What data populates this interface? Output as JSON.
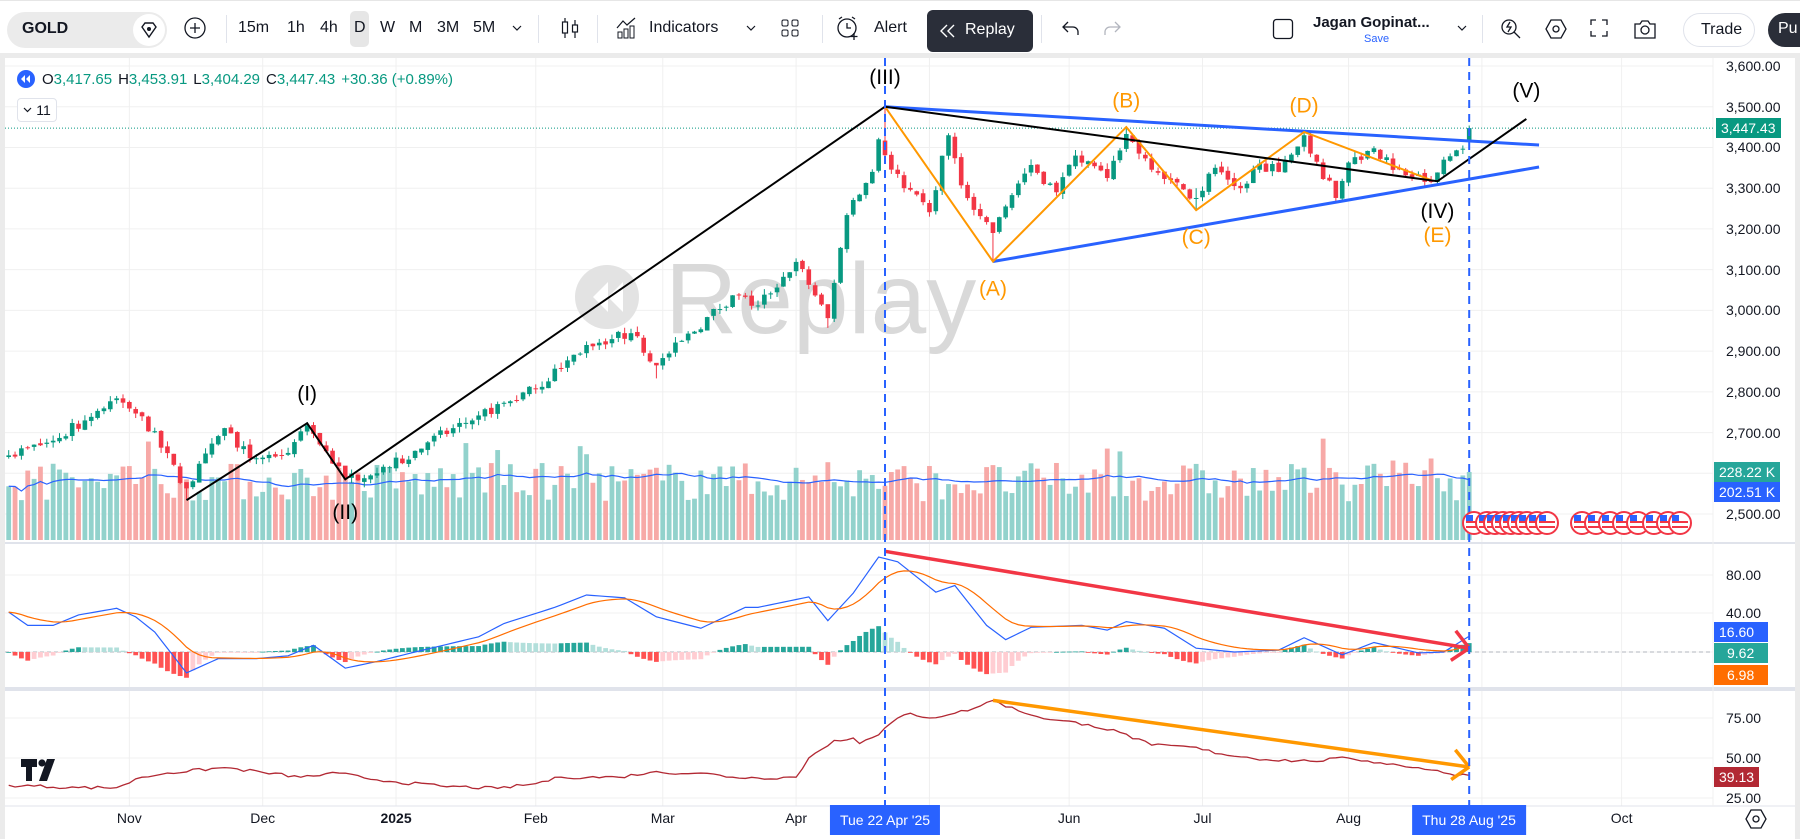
{
  "toolbar": {
    "symbol": "GOLD",
    "intervals": [
      "15m",
      "1h",
      "4h",
      "D",
      "W",
      "M",
      "3M",
      "5M"
    ],
    "selected_interval": "D",
    "indicators_label": "Indicators",
    "alert_label": "Alert",
    "replay_label": "Replay",
    "layout_name": "Jagan Gopinat...",
    "save_label": "Save",
    "trade_label": "Trade",
    "publish_label": "Pu"
  },
  "legend": {
    "o_label": "O",
    "open": "3,417.65",
    "h_label": "H",
    "high": "3,453.91",
    "l_label": "L",
    "low": "3,404.29",
    "c_label": "C",
    "close": "3,447.43",
    "change": "+30.36 (+0.89%)",
    "indicators_count": "11"
  },
  "watermark": "Replay",
  "price_axis": [
    "3,600.00",
    "3,500.00",
    "3,400.00",
    "3,300.00",
    "3,200.00",
    "3,100.00",
    "3,000.00",
    "2,900.00",
    "2,800.00",
    "2,700.00",
    "2,500.00"
  ],
  "macd_axis": [
    "80.00",
    "40.00"
  ],
  "osc_axis": [
    "75.00",
    "50.00",
    "25.00"
  ],
  "tags": {
    "last_price": "3,447.43",
    "volume": "228.22 K",
    "volume_ma": "202.51 K",
    "macd": "16.60",
    "histogram": "9.62",
    "signal": "6.98",
    "oscillator": "39.13"
  },
  "time_axis": [
    {
      "label": "Nov",
      "date": "2024-11-01",
      "bold": false
    },
    {
      "label": "Dec",
      "date": "2024-12-02",
      "bold": false
    },
    {
      "label": "2025",
      "date": "2025-01-02",
      "bold": true
    },
    {
      "label": "Feb",
      "date": "2025-02-03",
      "bold": false
    },
    {
      "label": "Mar",
      "date": "2025-03-03",
      "bold": false
    },
    {
      "label": "Apr",
      "date": "2025-04-01",
      "bold": false
    },
    {
      "label": "Jun",
      "date": "2025-06-02",
      "bold": false
    },
    {
      "label": "Jul",
      "date": "2025-07-01",
      "bold": false
    },
    {
      "label": "Aug",
      "date": "2025-08-01",
      "bold": false
    },
    {
      "label": "Oct",
      "date": "2025-10-01",
      "bold": false
    }
  ],
  "cursor_labels": {
    "start": "Tue 22 Apr '25",
    "end": "Thu 28 Aug '25"
  },
  "wave_labels": {
    "I": "(I)",
    "II": "(II)",
    "III": "(III)",
    "IV": "(IV)",
    "V": "(V)",
    "A": "(A)",
    "B": "(B)",
    "C": "(C)",
    "D": "(D)",
    "E": "(E)"
  },
  "colors": {
    "up": "#089981",
    "down": "#f23645",
    "vol_up": "#92d2cc",
    "vol_down": "#f7a9a7",
    "macd": "#2962ff",
    "signal": "#ff6d00",
    "osc": "#b22833",
    "wave": "#000000",
    "abc": "#ff9800",
    "channel": "#2962ff",
    "divergence_macd": "#f23645",
    "divergence_osc": "#ff9800",
    "accent": "#2962ff"
  },
  "chart_data": {
    "type": "candlestick",
    "symbol": "GOLD",
    "interval": "D",
    "last_bar_date": "2025-08-28",
    "last_bar": {
      "open": 3417.65,
      "high": 3453.91,
      "low": 3404.29,
      "close": 3447.43
    },
    "price_range": [
      2500,
      3600
    ],
    "close_anchors": [
      [
        "2024-10-07",
        2644
      ],
      [
        "2024-10-16",
        2680
      ],
      [
        "2024-10-30",
        2784,
        2790
      ],
      [
        "2024-11-05",
        2740
      ],
      [
        "2024-11-14",
        2563,
        2570,
        2536
      ],
      [
        "2024-11-22",
        2711
      ],
      [
        "2024-11-28",
        2637
      ],
      [
        "2024-12-06",
        2650
      ],
      [
        "2024-12-11",
        2718,
        2726
      ],
      [
        "2024-12-19",
        2588,
        2600,
        2584
      ],
      [
        "2024-12-31",
        2615
      ],
      [
        "2025-01-09",
        2676
      ],
      [
        "2025-01-21",
        2742
      ],
      [
        "2025-02-03",
        2808
      ],
      [
        "2025-02-13",
        2915
      ],
      [
        "2025-02-24",
        2944,
        2955
      ],
      [
        "2025-02-28",
        2865,
        2870,
        2833
      ],
      [
        "2025-03-18",
        3037
      ],
      [
        "2025-03-24",
        3012
      ],
      [
        "2025-04-01",
        3119
      ],
      [
        "2025-04-08",
        2981,
        3010,
        2957
      ],
      [
        "2025-04-11",
        3234
      ],
      [
        "2025-04-17",
        3340
      ],
      [
        "2025-04-21",
        3420
      ],
      [
        "2025-04-22",
        3381,
        3500
      ],
      [
        "2025-04-25",
        3300
      ],
      [
        "2025-05-01",
        3241
      ],
      [
        "2025-05-06",
        3430,
        3435
      ],
      [
        "2025-05-08",
        3307
      ],
      [
        "2025-05-15",
        3190,
        3210,
        3120
      ],
      [
        "2025-05-20",
        3283
      ],
      [
        "2025-05-23",
        3357
      ],
      [
        "2025-05-29",
        3290
      ],
      [
        "2025-06-03",
        3380
      ],
      [
        "2025-06-10",
        3325
      ],
      [
        "2025-06-13",
        3433,
        3452
      ],
      [
        "2025-06-17",
        3385
      ],
      [
        "2025-06-24",
        3320
      ],
      [
        "2025-06-30",
        3276,
        3300,
        3246
      ],
      [
        "2025-07-03",
        3350
      ],
      [
        "2025-07-09",
        3300
      ],
      [
        "2025-07-14",
        3360
      ],
      [
        "2025-07-17",
        3340
      ],
      [
        "2025-07-23",
        3430,
        3438
      ],
      [
        "2025-07-25",
        3365
      ],
      [
        "2025-07-30",
        3276,
        3300,
        3268
      ],
      [
        "2025-08-01",
        3363
      ],
      [
        "2025-08-07",
        3398
      ],
      [
        "2025-08-12",
        3345
      ],
      [
        "2025-08-20",
        3315,
        3330,
        3312
      ],
      [
        "2025-08-22",
        3370
      ],
      [
        "2025-08-26",
        3393
      ],
      [
        "2025-08-27",
        3397
      ]
    ],
    "volume_unit": "K",
    "last_volume": 228.22,
    "last_volume_ma": 202.51,
    "macd_anchors": [
      [
        "2024-10-07",
        42
      ],
      [
        "2024-10-10",
        28
      ],
      [
        "2024-10-16",
        28
      ],
      [
        "2024-10-22",
        39
      ],
      [
        "2024-10-30",
        46
      ],
      [
        "2024-11-04",
        37
      ],
      [
        "2024-11-07",
        21
      ],
      [
        "2024-11-14",
        -22
      ],
      [
        "2024-11-21",
        -7
      ],
      [
        "2024-11-29",
        -7
      ],
      [
        "2024-12-06",
        -4
      ],
      [
        "2024-12-12",
        7
      ],
      [
        "2024-12-19",
        -17
      ],
      [
        "2024-12-27",
        -10
      ],
      [
        "2025-01-07",
        0
      ],
      [
        "2025-01-21",
        16
      ],
      [
        "2025-01-27",
        30
      ],
      [
        "2025-02-06",
        47
      ],
      [
        "2025-02-13",
        60
      ],
      [
        "2025-02-21",
        57
      ],
      [
        "2025-02-28",
        37
      ],
      [
        "2025-03-11",
        25
      ],
      [
        "2025-03-20",
        47
      ],
      [
        "2025-03-24",
        47
      ],
      [
        "2025-04-03",
        58
      ],
      [
        "2025-04-08",
        33
      ],
      [
        "2025-04-14",
        62
      ],
      [
        "2025-04-21",
        100
      ],
      [
        "2025-04-24",
        95
      ],
      [
        "2025-05-02",
        63
      ],
      [
        "2025-05-07",
        70
      ],
      [
        "2025-05-14",
        28
      ],
      [
        "2025-05-19",
        13
      ],
      [
        "2025-05-23",
        26
      ],
      [
        "2025-06-04",
        28
      ],
      [
        "2025-06-10",
        23
      ],
      [
        "2025-06-13",
        32
      ],
      [
        "2025-06-23",
        25
      ],
      [
        "2025-06-30",
        4
      ],
      [
        "2025-07-08",
        0
      ],
      [
        "2025-07-17",
        2
      ],
      [
        "2025-07-23",
        15
      ],
      [
        "2025-07-31",
        -3
      ],
      [
        "2025-08-07",
        10
      ],
      [
        "2025-08-18",
        -1
      ],
      [
        "2025-08-22",
        0
      ],
      [
        "2025-08-28",
        16.6
      ]
    ],
    "macd_range": [
      -40,
      100
    ],
    "oscillator_anchors": [
      [
        "2024-10-07",
        33
      ],
      [
        "2024-10-22",
        31.5
      ],
      [
        "2024-10-30",
        31.5
      ],
      [
        "2024-11-05",
        38
      ],
      [
        "2024-11-11",
        40.6
      ],
      [
        "2024-11-22",
        44
      ],
      [
        "2024-12-02",
        41
      ],
      [
        "2024-12-10",
        38
      ],
      [
        "2024-12-18",
        40.6
      ],
      [
        "2024-12-24",
        37.5
      ],
      [
        "2025-01-02",
        35
      ],
      [
        "2025-01-13",
        32.5
      ],
      [
        "2025-01-24",
        31
      ],
      [
        "2025-02-03",
        34
      ],
      [
        "2025-02-07",
        38
      ],
      [
        "2025-02-20",
        38
      ],
      [
        "2025-02-27",
        41
      ],
      [
        "2025-03-11",
        40.6
      ],
      [
        "2025-03-18",
        38
      ],
      [
        "2025-03-24",
        37.5
      ],
      [
        "2025-04-01",
        38
      ],
      [
        "2025-04-03",
        50
      ],
      [
        "2025-04-09",
        61
      ],
      [
        "2025-04-14",
        62.5
      ],
      [
        "2025-04-15",
        59
      ],
      [
        "2025-04-21",
        64.5
      ],
      [
        "2025-04-24",
        75
      ],
      [
        "2025-04-28",
        78
      ],
      [
        "2025-05-01",
        75
      ],
      [
        "2025-05-07",
        78
      ],
      [
        "2025-05-12",
        81
      ],
      [
        "2025-05-15",
        86
      ],
      [
        "2025-05-21",
        79.5
      ],
      [
        "2025-05-28",
        74
      ],
      [
        "2025-06-05",
        71
      ],
      [
        "2025-06-12",
        66
      ],
      [
        "2025-06-19",
        58
      ],
      [
        "2025-06-27",
        57
      ],
      [
        "2025-07-04",
        52.5
      ],
      [
        "2025-07-15",
        49
      ],
      [
        "2025-07-24",
        48
      ],
      [
        "2025-08-01",
        50
      ],
      [
        "2025-08-08",
        47
      ],
      [
        "2025-08-18",
        44
      ],
      [
        "2025-08-25",
        40
      ],
      [
        "2025-08-28",
        39.13
      ]
    ],
    "oscillator_range": [
      20,
      95
    ],
    "drawings": {
      "elliott_wave": [
        [
          "2024-11-14",
          2534
        ],
        [
          "2024-12-11",
          2723
        ],
        [
          "2024-12-19",
          2585
        ],
        [
          "2025-04-22",
          3500
        ],
        [
          "2025-08-21",
          3317
        ],
        [
          "2025-09-10",
          3470
        ]
      ],
      "abcde": [
        [
          "2025-04-22",
          3500
        ],
        [
          "2025-05-15",
          3120
        ],
        [
          "2025-06-13",
          3450
        ],
        [
          "2025-06-30",
          3246
        ],
        [
          "2025-07-23",
          3438
        ],
        [
          "2025-08-20",
          3320
        ]
      ],
      "triangle_upper": [
        [
          "2025-04-22",
          3500
        ],
        [
          "2025-09-12",
          3406
        ]
      ],
      "triangle_lower": [
        [
          "2025-05-15",
          3120
        ],
        [
          "2025-09-12",
          3352
        ]
      ],
      "macd_divergence": [
        [
          "2025-04-22",
          106
        ],
        [
          "2025-08-28",
          4
        ]
      ],
      "osc_divergence": [
        [
          "2025-05-15",
          86
        ],
        [
          "2025-08-28",
          44.4
        ]
      ],
      "label_points": {
        "I": [
          "2024-12-11",
          2792
        ],
        "II": [
          "2024-12-19",
          2502
        ],
        "III": [
          "2025-04-22",
          3570
        ],
        "IV": [
          "2025-08-21",
          3241
        ],
        "V": [
          "2025-09-10",
          3536
        ],
        "A": [
          "2025-05-15",
          3050
        ],
        "B": [
          "2025-06-13",
          3512
        ],
        "C": [
          "2025-06-30",
          3177
        ],
        "D": [
          "2025-07-23",
          3500
        ],
        "E": [
          "2025-08-21",
          3241
        ]
      }
    },
    "replay_start": "2025-04-22",
    "replay_end": "2025-08-28"
  }
}
